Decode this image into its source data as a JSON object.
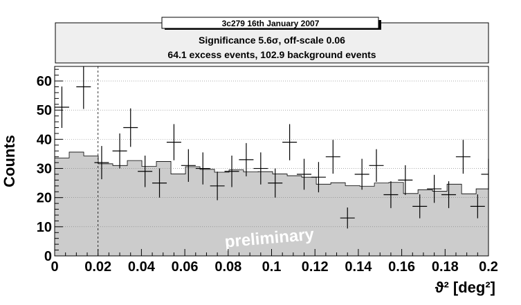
{
  "title": "3c279 16th January 2007",
  "stats_line_1": "Significance 5.6σ,  off-scale 0.06",
  "stats_line_2": "64.1 excess events,  102.9 background events",
  "watermark": "preliminary",
  "colors": {
    "background_fill": "#cccccc",
    "background_line": "#000000",
    "on_points": "#000000",
    "frame": "#000000",
    "grid": "#777777"
  },
  "chart_data": {
    "type": "histogram",
    "xlabel": "ϑ² [deg²]",
    "ylabel": "Counts",
    "xlim": [
      0,
      0.2
    ],
    "ylim": [
      0,
      65
    ],
    "bin_width": 0.0067,
    "grid": "horizontal-dotted",
    "cut_line_x": 0.02,
    "x_ticks": [
      {
        "v": 0,
        "label": "0"
      },
      {
        "v": 0.02,
        "label": "0.02"
      },
      {
        "v": 0.04,
        "label": "0.04"
      },
      {
        "v": 0.06,
        "label": "0.06"
      },
      {
        "v": 0.08,
        "label": "0.08"
      },
      {
        "v": 0.1,
        "label": "0.1"
      },
      {
        "v": 0.12,
        "label": "0.12"
      },
      {
        "v": 0.14,
        "label": "0.14"
      },
      {
        "v": 0.16,
        "label": "0.16"
      },
      {
        "v": 0.18,
        "label": "0.18"
      },
      {
        "v": 0.2,
        "label": "0.2"
      }
    ],
    "y_ticks": [
      {
        "v": 0,
        "label": "0"
      },
      {
        "v": 10,
        "label": "10"
      },
      {
        "v": 20,
        "label": "20"
      },
      {
        "v": 30,
        "label": "30"
      },
      {
        "v": 40,
        "label": "40"
      },
      {
        "v": 50,
        "label": "50"
      },
      {
        "v": 60,
        "label": "60"
      }
    ],
    "background_values": [
      33.6,
      35.6,
      34.3,
      31.6,
      31.0,
      32.7,
      30.7,
      32.4,
      28.1,
      30.6,
      29.7,
      28.7,
      29.5,
      28.8,
      28.9,
      28.1,
      27.5,
      27.0,
      24.6,
      25.1,
      24.1,
      23.9,
      25.0,
      25.2,
      21.4,
      22.7,
      22.2,
      24.6,
      21.3,
      23.0,
      22.3,
      20.4
    ],
    "on_points": [
      {
        "x": 0.00333,
        "y": 51,
        "err": 7.1
      },
      {
        "x": 0.01333,
        "y": 58,
        "err": 7.6
      },
      {
        "x": 0.02167,
        "y": 32,
        "err": 5.7
      },
      {
        "x": 0.03,
        "y": 36,
        "err": 6.0
      },
      {
        "x": 0.035,
        "y": 44,
        "err": 6.6
      },
      {
        "x": 0.04167,
        "y": 29,
        "err": 5.4
      },
      {
        "x": 0.04833,
        "y": 25,
        "err": 5.0
      },
      {
        "x": 0.055,
        "y": 39,
        "err": 6.2
      },
      {
        "x": 0.06167,
        "y": 31,
        "err": 5.6
      },
      {
        "x": 0.06833,
        "y": 30,
        "err": 5.5
      },
      {
        "x": 0.075,
        "y": 24,
        "err": 4.9
      },
      {
        "x": 0.08167,
        "y": 29,
        "err": 5.4
      },
      {
        "x": 0.08833,
        "y": 33,
        "err": 5.7
      },
      {
        "x": 0.095,
        "y": 30,
        "err": 5.5
      },
      {
        "x": 0.10167,
        "y": 25,
        "err": 5.0
      },
      {
        "x": 0.10833,
        "y": 39,
        "err": 6.2
      },
      {
        "x": 0.115,
        "y": 28,
        "err": 5.3
      },
      {
        "x": 0.12167,
        "y": 27,
        "err": 5.2
      },
      {
        "x": 0.12833,
        "y": 34,
        "err": 5.8
      },
      {
        "x": 0.135,
        "y": 13,
        "err": 3.6
      },
      {
        "x": 0.14167,
        "y": 28,
        "err": 5.3
      },
      {
        "x": 0.14833,
        "y": 31,
        "err": 5.6
      },
      {
        "x": 0.155,
        "y": 21,
        "err": 4.6
      },
      {
        "x": 0.16167,
        "y": 26,
        "err": 5.1
      },
      {
        "x": 0.16833,
        "y": 17,
        "err": 4.1
      },
      {
        "x": 0.175,
        "y": 23,
        "err": 4.8
      },
      {
        "x": 0.18167,
        "y": 21,
        "err": 4.6
      },
      {
        "x": 0.18833,
        "y": 34,
        "err": 5.8
      },
      {
        "x": 0.195,
        "y": 17,
        "err": 4.1
      },
      {
        "x": 0.2,
        "y": 28,
        "err": 5.3
      }
    ]
  }
}
